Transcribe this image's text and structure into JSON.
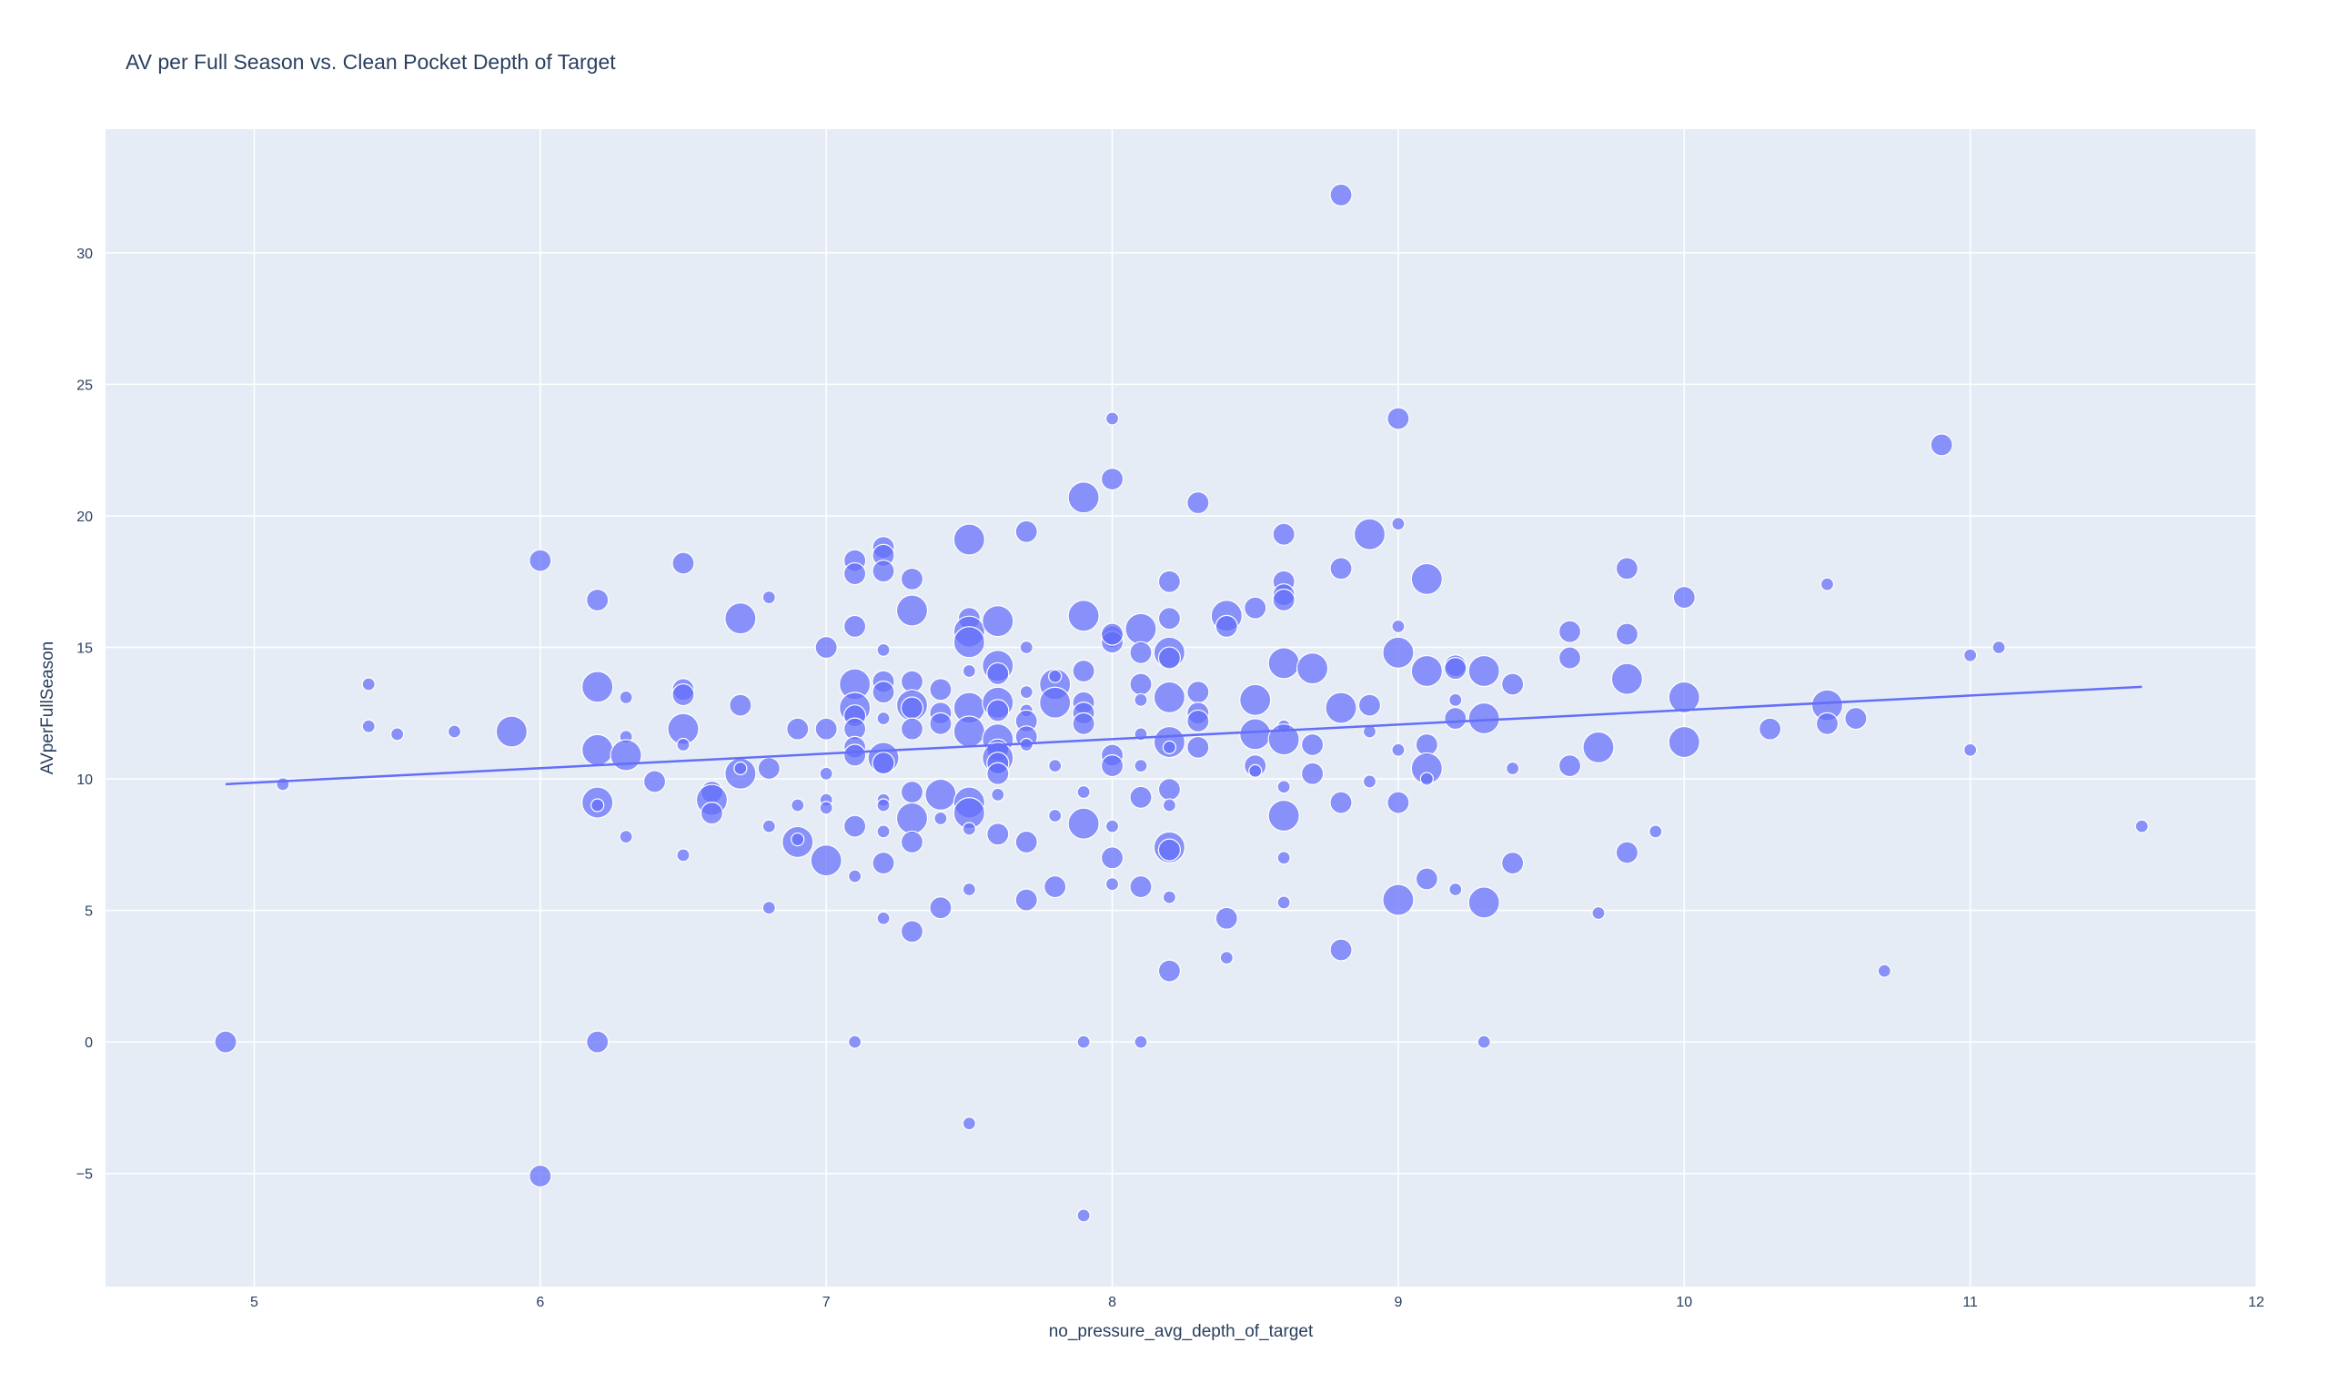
{
  "chart_data": {
    "type": "scatter",
    "title": "AV per Full Season vs. Clean Pocket Depth of Target",
    "xlabel": "no_pressure_avg_depth_of_target",
    "ylabel": "AVperFullSeason",
    "xlim": [
      4.48,
      12.0
    ],
    "ylim": [
      -9.3,
      34.7
    ],
    "xticks": [
      5,
      6,
      7,
      8,
      9,
      10,
      11,
      12
    ],
    "yticks": [
      -5,
      0,
      5,
      10,
      15,
      20,
      25,
      30
    ],
    "xtick_labels": [
      "5",
      "6",
      "7",
      "8",
      "9",
      "10",
      "11",
      "12"
    ],
    "ytick_labels": [
      "−5",
      "0",
      "5",
      "10",
      "15",
      "20",
      "25",
      "30"
    ],
    "grid": true,
    "legend": "none",
    "colors": {
      "marker": "#636efa",
      "trend": "#636efa",
      "plot_bg": "#e5ecf6",
      "grid": "#ffffff",
      "text": "#2a3f5f"
    },
    "trendline": {
      "x": [
        4.9,
        11.6
      ],
      "y": [
        9.8,
        13.5
      ]
    },
    "points": [
      [
        8.8,
        32.2,
        2
      ],
      [
        8.0,
        23.7,
        1
      ],
      [
        9.0,
        23.7,
        2
      ],
      [
        10.9,
        22.7,
        2
      ],
      [
        7.9,
        20.7,
        3
      ],
      [
        8.0,
        21.4,
        2
      ],
      [
        8.3,
        20.5,
        2
      ],
      [
        6.0,
        18.3,
        2
      ],
      [
        6.5,
        18.2,
        2
      ],
      [
        7.1,
        18.3,
        2
      ],
      [
        7.2,
        18.8,
        2
      ],
      [
        7.2,
        18.5,
        2
      ],
      [
        7.5,
        19.1,
        3
      ],
      [
        7.7,
        19.4,
        2
      ],
      [
        8.6,
        19.3,
        2
      ],
      [
        8.9,
        19.3,
        3
      ],
      [
        9.0,
        19.7,
        1
      ],
      [
        7.1,
        17.8,
        2
      ],
      [
        7.2,
        17.9,
        2
      ],
      [
        7.3,
        17.6,
        2
      ],
      [
        8.2,
        17.5,
        2
      ],
      [
        8.6,
        17.5,
        2
      ],
      [
        8.8,
        18.0,
        2
      ],
      [
        9.1,
        17.6,
        3
      ],
      [
        9.8,
        18.0,
        2
      ],
      [
        10.5,
        17.4,
        1
      ],
      [
        6.2,
        16.8,
        2
      ],
      [
        6.8,
        16.9,
        1
      ],
      [
        8.6,
        17.0,
        2
      ],
      [
        8.6,
        16.8,
        2
      ],
      [
        10.0,
        16.9,
        2
      ],
      [
        6.7,
        16.1,
        3
      ],
      [
        7.1,
        15.8,
        2
      ],
      [
        7.3,
        16.4,
        3
      ],
      [
        7.5,
        16.1,
        2
      ],
      [
        7.5,
        15.6,
        3
      ],
      [
        7.6,
        16.0,
        3
      ],
      [
        7.9,
        16.2,
        3
      ],
      [
        8.0,
        15.4,
        2
      ],
      [
        8.0,
        15.2,
        2
      ],
      [
        8.1,
        15.7,
        3
      ],
      [
        8.2,
        16.1,
        2
      ],
      [
        8.4,
        16.2,
        3
      ],
      [
        8.4,
        15.8,
        2
      ],
      [
        8.5,
        16.5,
        2
      ],
      [
        9.0,
        15.8,
        1
      ],
      [
        9.6,
        15.6,
        2
      ],
      [
        9.8,
        15.5,
        2
      ],
      [
        7.0,
        15.0,
        2
      ],
      [
        7.2,
        14.9,
        1
      ],
      [
        7.5,
        15.2,
        3
      ],
      [
        7.7,
        15.0,
        1
      ],
      [
        8.0,
        15.5,
        2
      ],
      [
        8.1,
        14.8,
        2
      ],
      [
        8.2,
        14.8,
        3
      ],
      [
        8.2,
        14.6,
        2
      ],
      [
        8.6,
        14.4,
        3
      ],
      [
        8.7,
        14.2,
        3
      ],
      [
        9.0,
        14.8,
        3
      ],
      [
        9.1,
        14.1,
        3
      ],
      [
        9.2,
        14.3,
        2
      ],
      [
        9.2,
        14.2,
        2
      ],
      [
        9.3,
        14.1,
        3
      ],
      [
        9.6,
        14.6,
        2
      ],
      [
        11.0,
        14.7,
        1
      ],
      [
        11.1,
        15.0,
        1
      ],
      [
        5.4,
        13.6,
        1
      ],
      [
        6.2,
        13.5,
        3
      ],
      [
        6.3,
        13.1,
        1
      ],
      [
        6.5,
        13.4,
        2
      ],
      [
        6.5,
        13.2,
        2
      ],
      [
        7.1,
        13.6,
        3
      ],
      [
        7.2,
        13.7,
        2
      ],
      [
        7.2,
        13.3,
        2
      ],
      [
        7.3,
        13.7,
        2
      ],
      [
        7.4,
        13.4,
        2
      ],
      [
        7.5,
        14.1,
        1
      ],
      [
        7.6,
        14.3,
        3
      ],
      [
        7.6,
        14.0,
        2
      ],
      [
        7.7,
        13.3,
        1
      ],
      [
        7.8,
        13.6,
        3
      ],
      [
        7.8,
        13.9,
        1
      ],
      [
        7.9,
        14.1,
        2
      ],
      [
        8.1,
        13.6,
        2
      ],
      [
        8.1,
        13.0,
        1
      ],
      [
        8.2,
        13.1,
        3
      ],
      [
        8.3,
        13.3,
        2
      ],
      [
        8.5,
        13.0,
        3
      ],
      [
        9.4,
        13.6,
        2
      ],
      [
        9.8,
        13.8,
        3
      ],
      [
        10.0,
        13.1,
        3
      ],
      [
        5.4,
        12.0,
        1
      ],
      [
        5.5,
        11.7,
        1
      ],
      [
        5.7,
        11.8,
        1
      ],
      [
        5.9,
        11.8,
        3
      ],
      [
        6.3,
        11.6,
        1
      ],
      [
        6.5,
        11.9,
        3
      ],
      [
        6.5,
        11.3,
        1
      ],
      [
        6.7,
        12.8,
        2
      ],
      [
        6.9,
        11.9,
        2
      ],
      [
        7.0,
        11.9,
        2
      ],
      [
        7.1,
        12.7,
        3
      ],
      [
        7.1,
        12.4,
        2
      ],
      [
        7.1,
        11.9,
        2
      ],
      [
        7.2,
        12.3,
        1
      ],
      [
        7.3,
        12.8,
        3
      ],
      [
        7.3,
        12.7,
        2
      ],
      [
        7.3,
        11.9,
        2
      ],
      [
        7.4,
        12.5,
        2
      ],
      [
        7.4,
        12.1,
        2
      ],
      [
        7.5,
        12.7,
        3
      ],
      [
        7.5,
        11.8,
        3
      ],
      [
        7.6,
        12.9,
        3
      ],
      [
        7.6,
        12.6,
        2
      ],
      [
        7.6,
        11.5,
        3
      ],
      [
        7.7,
        12.6,
        1
      ],
      [
        7.7,
        12.2,
        2
      ],
      [
        7.7,
        11.6,
        2
      ],
      [
        7.7,
        11.3,
        1
      ],
      [
        7.8,
        12.9,
        3
      ],
      [
        7.9,
        12.9,
        2
      ],
      [
        7.9,
        12.5,
        2
      ],
      [
        7.9,
        12.1,
        2
      ],
      [
        8.1,
        11.7,
        1
      ],
      [
        8.2,
        11.4,
        3
      ],
      [
        8.2,
        11.2,
        1
      ],
      [
        8.3,
        12.5,
        2
      ],
      [
        8.3,
        12.2,
        2
      ],
      [
        8.3,
        11.2,
        2
      ],
      [
        8.5,
        11.7,
        3
      ],
      [
        8.6,
        12.0,
        1
      ],
      [
        8.6,
        11.5,
        3
      ],
      [
        8.7,
        11.3,
        2
      ],
      [
        8.8,
        12.7,
        3
      ],
      [
        8.9,
        12.8,
        2
      ],
      [
        8.9,
        11.8,
        1
      ],
      [
        9.0,
        11.1,
        1
      ],
      [
        9.1,
        11.3,
        2
      ],
      [
        9.2,
        13.0,
        1
      ],
      [
        9.2,
        12.3,
        2
      ],
      [
        9.3,
        12.3,
        3
      ],
      [
        9.7,
        11.2,
        3
      ],
      [
        10.0,
        11.4,
        3
      ],
      [
        10.3,
        11.9,
        2
      ],
      [
        10.5,
        12.8,
        3
      ],
      [
        10.5,
        12.1,
        2
      ],
      [
        10.6,
        12.3,
        2
      ],
      [
        11.0,
        11.1,
        1
      ],
      [
        5.1,
        9.8,
        1
      ],
      [
        6.2,
        11.1,
        3
      ],
      [
        6.2,
        9.1,
        3
      ],
      [
        6.2,
        9.0,
        1
      ],
      [
        6.3,
        10.9,
        3
      ],
      [
        6.4,
        9.9,
        2
      ],
      [
        6.6,
        9.5,
        2
      ],
      [
        6.6,
        9.2,
        3
      ],
      [
        6.6,
        8.7,
        2
      ],
      [
        6.7,
        10.2,
        3
      ],
      [
        6.7,
        10.4,
        1
      ],
      [
        6.8,
        10.4,
        2
      ],
      [
        6.8,
        8.2,
        1
      ],
      [
        6.9,
        9.0,
        1
      ],
      [
        7.0,
        10.2,
        1
      ],
      [
        7.0,
        9.2,
        1
      ],
      [
        7.0,
        8.9,
        1
      ],
      [
        7.1,
        11.2,
        2
      ],
      [
        7.1,
        10.9,
        2
      ],
      [
        7.1,
        8.2,
        2
      ],
      [
        7.2,
        10.8,
        3
      ],
      [
        7.2,
        10.6,
        2
      ],
      [
        7.2,
        9.2,
        1
      ],
      [
        7.2,
        9.0,
        1
      ],
      [
        7.2,
        8.0,
        1
      ],
      [
        7.3,
        9.5,
        2
      ],
      [
        7.3,
        8.5,
        3
      ],
      [
        7.4,
        9.4,
        3
      ],
      [
        7.4,
        8.5,
        1
      ],
      [
        7.5,
        9.1,
        3
      ],
      [
        7.5,
        8.7,
        3
      ],
      [
        7.5,
        8.1,
        1
      ],
      [
        7.6,
        11.1,
        2
      ],
      [
        7.6,
        10.8,
        3
      ],
      [
        7.6,
        10.6,
        2
      ],
      [
        7.6,
        10.2,
        2
      ],
      [
        7.6,
        9.4,
        1
      ],
      [
        7.8,
        10.5,
        1
      ],
      [
        7.8,
        8.6,
        1
      ],
      [
        7.9,
        9.5,
        1
      ],
      [
        7.9,
        8.3,
        3
      ],
      [
        8.0,
        10.9,
        2
      ],
      [
        8.0,
        10.5,
        2
      ],
      [
        8.0,
        8.2,
        1
      ],
      [
        8.1,
        10.5,
        1
      ],
      [
        8.1,
        9.3,
        2
      ],
      [
        8.2,
        9.6,
        2
      ],
      [
        8.2,
        9.0,
        1
      ],
      [
        8.5,
        10.5,
        2
      ],
      [
        8.5,
        10.3,
        1
      ],
      [
        8.6,
        9.7,
        1
      ],
      [
        8.6,
        8.6,
        3
      ],
      [
        8.7,
        10.2,
        2
      ],
      [
        8.8,
        9.1,
        2
      ],
      [
        8.9,
        9.9,
        1
      ],
      [
        9.0,
        9.1,
        2
      ],
      [
        9.1,
        10.4,
        3
      ],
      [
        9.1,
        10.0,
        1
      ],
      [
        9.4,
        10.4,
        1
      ],
      [
        9.6,
        10.5,
        2
      ],
      [
        9.9,
        8.0,
        1
      ],
      [
        11.6,
        8.2,
        1
      ],
      [
        6.3,
        7.8,
        1
      ],
      [
        6.5,
        7.1,
        1
      ],
      [
        6.9,
        7.6,
        3
      ],
      [
        6.9,
        7.7,
        1
      ],
      [
        7.0,
        6.9,
        3
      ],
      [
        7.1,
        6.3,
        1
      ],
      [
        7.2,
        6.8,
        2
      ],
      [
        7.3,
        7.6,
        2
      ],
      [
        7.7,
        7.6,
        2
      ],
      [
        7.6,
        7.9,
        2
      ],
      [
        8.0,
        7.0,
        2
      ],
      [
        8.2,
        7.4,
        3
      ],
      [
        8.2,
        7.3,
        2
      ],
      [
        8.6,
        7.0,
        1
      ],
      [
        9.1,
        6.2,
        2
      ],
      [
        9.4,
        6.8,
        2
      ],
      [
        9.8,
        7.2,
        2
      ],
      [
        6.8,
        5.1,
        1
      ],
      [
        7.2,
        4.7,
        1
      ],
      [
        7.3,
        4.2,
        2
      ],
      [
        7.4,
        5.1,
        2
      ],
      [
        7.5,
        5.8,
        1
      ],
      [
        7.7,
        5.4,
        2
      ],
      [
        7.8,
        5.9,
        2
      ],
      [
        8.0,
        6.0,
        1
      ],
      [
        8.1,
        5.9,
        2
      ],
      [
        8.2,
        5.5,
        1
      ],
      [
        8.4,
        4.7,
        2
      ],
      [
        8.6,
        5.3,
        1
      ],
      [
        9.0,
        5.4,
        3
      ],
      [
        9.2,
        5.8,
        1
      ],
      [
        9.3,
        5.3,
        3
      ],
      [
        9.7,
        4.9,
        1
      ],
      [
        8.2,
        2.7,
        2
      ],
      [
        8.4,
        3.2,
        1
      ],
      [
        8.8,
        3.5,
        2
      ],
      [
        10.7,
        2.7,
        1
      ],
      [
        4.9,
        0.0,
        2
      ],
      [
        6.2,
        0.0,
        2
      ],
      [
        7.1,
        0.0,
        1
      ],
      [
        7.9,
        0.0,
        1
      ],
      [
        8.1,
        0.0,
        1
      ],
      [
        9.3,
        0.0,
        1
      ],
      [
        7.5,
        -3.1,
        1
      ],
      [
        6.0,
        -5.1,
        2
      ],
      [
        7.9,
        -6.6,
        1
      ]
    ]
  }
}
